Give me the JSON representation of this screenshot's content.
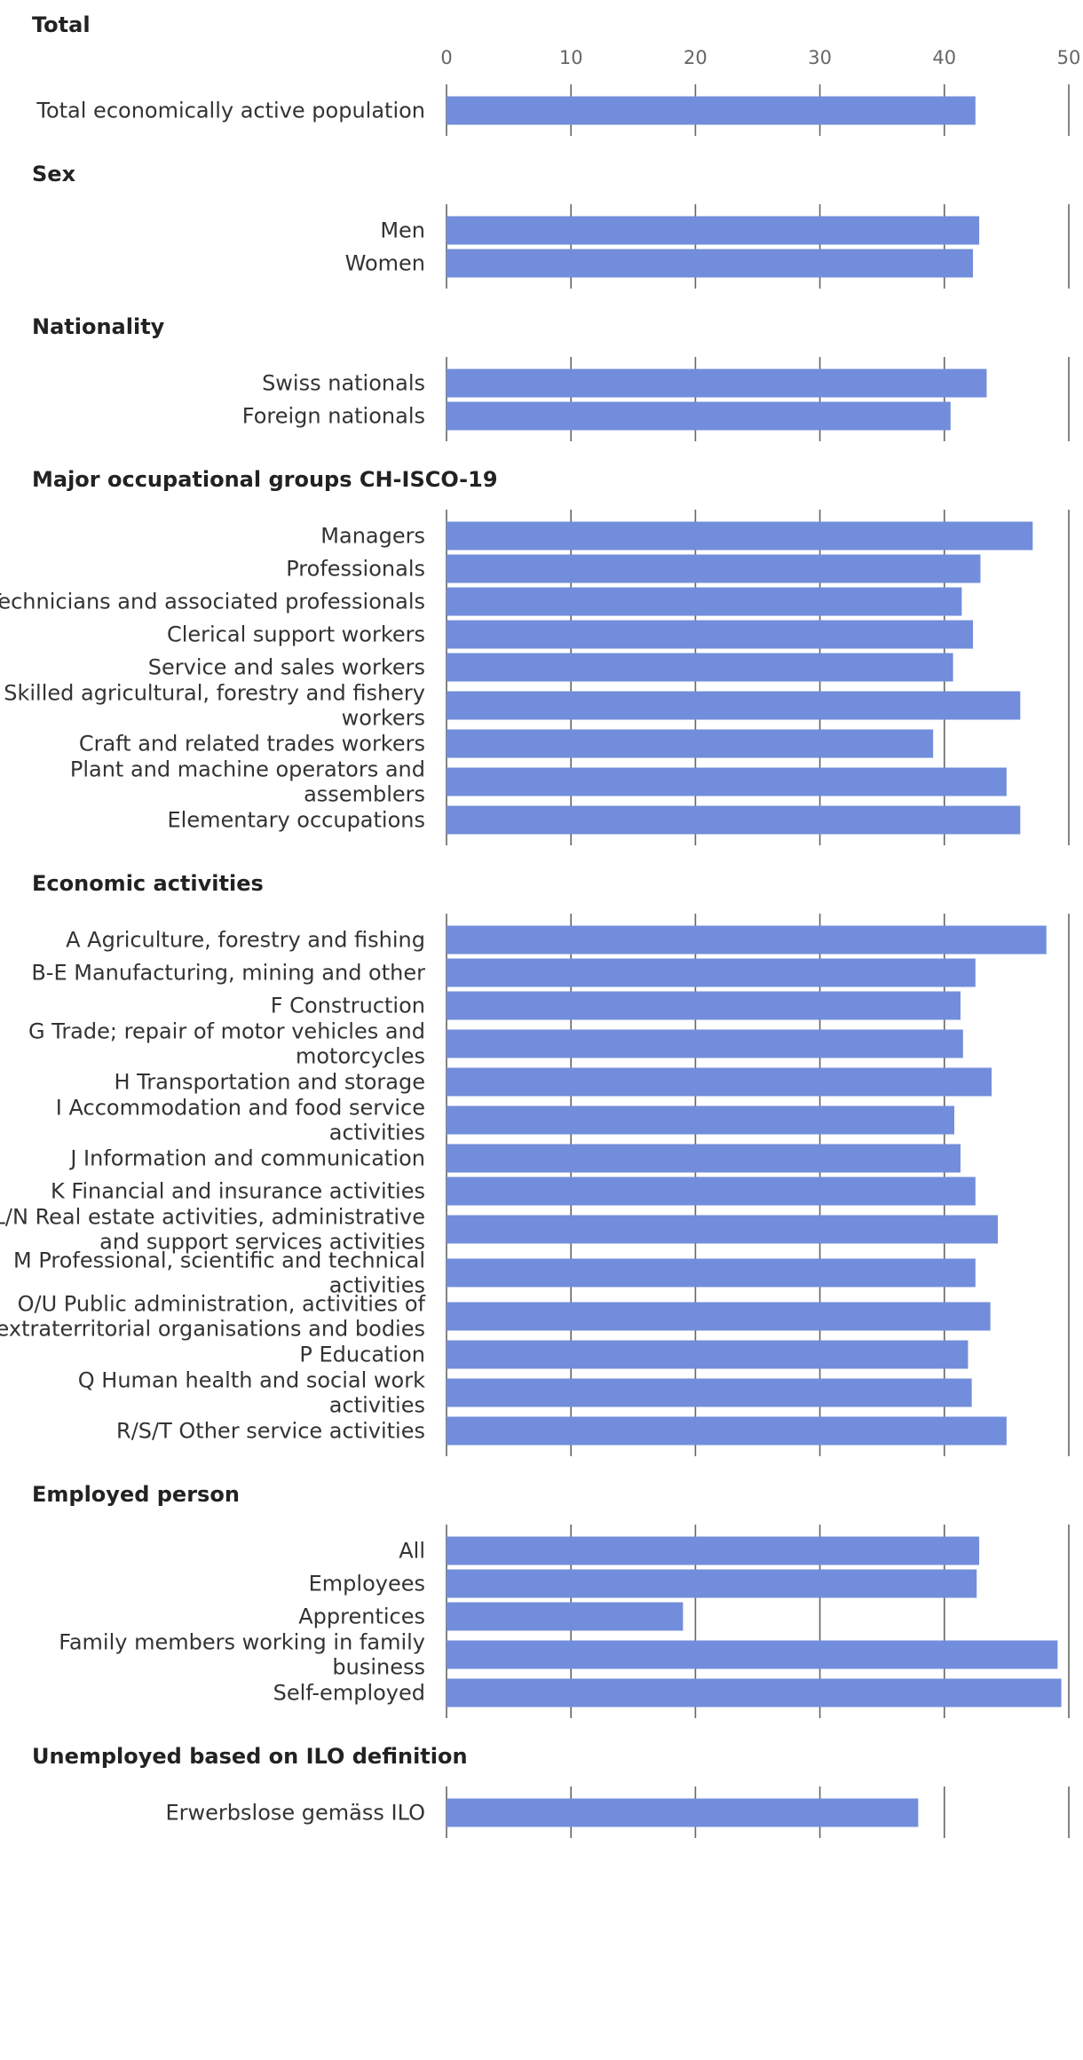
{
  "chart_data": {
    "type": "bar",
    "orientation": "horizontal",
    "xlim": [
      0,
      50
    ],
    "x_ticks": [
      0,
      10,
      20,
      30,
      40,
      50
    ],
    "grid": true,
    "bar_color": "#728ddb",
    "groups": [
      {
        "title": "Total",
        "categories": [
          [
            "Total economically active population"
          ]
        ],
        "values": [
          42.5
        ]
      },
      {
        "title": "Sex",
        "categories": [
          [
            "Men"
          ],
          [
            "Women"
          ]
        ],
        "values": [
          42.8,
          42.3
        ]
      },
      {
        "title": "Nationality",
        "categories": [
          [
            "Swiss nationals"
          ],
          [
            "Foreign nationals"
          ]
        ],
        "values": [
          43.4,
          40.5
        ]
      },
      {
        "title": "Major occupational groups CH-ISCO-19",
        "categories": [
          [
            "Managers"
          ],
          [
            "Professionals"
          ],
          [
            "Technicians and associated professionals"
          ],
          [
            "Clerical support workers"
          ],
          [
            "Service and sales workers"
          ],
          [
            "Skilled agricultural, forestry and fishery",
            "workers"
          ],
          [
            "Craft and related trades workers"
          ],
          [
            "Plant and machine operators and",
            "assemblers"
          ],
          [
            "Elementary occupations"
          ]
        ],
        "values": [
          47.1,
          42.9,
          41.4,
          42.3,
          40.7,
          46.1,
          39.1,
          45.0,
          46.1
        ]
      },
      {
        "title": "Economic activities",
        "categories": [
          [
            "A Agriculture, forestry and fishing"
          ],
          [
            "B-E Manufacturing, mining and other"
          ],
          [
            "F Construction"
          ],
          [
            "G Trade; repair of motor vehicles and",
            "motorcycles"
          ],
          [
            "H Transportation and storage"
          ],
          [
            "I Accommodation and food service",
            "activities"
          ],
          [
            "J Information and communication"
          ],
          [
            "K Financial and insurance activities"
          ],
          [
            "L/N Real estate activities, administrative",
            "and support services activities"
          ],
          [
            "M Professional, scientific and technical",
            "activities"
          ],
          [
            "O/U Public administration, activities of",
            "extraterritorial organisations and bodies"
          ],
          [
            "P Education"
          ],
          [
            "Q Human health and social work",
            "activities"
          ],
          [
            "R/S/T Other service activities"
          ]
        ],
        "values": [
          48.2,
          42.5,
          41.3,
          41.5,
          43.8,
          40.8,
          41.3,
          42.5,
          44.3,
          42.5,
          43.7,
          41.9,
          42.2,
          45.0
        ]
      },
      {
        "title": "Employed person",
        "categories": [
          [
            "All"
          ],
          [
            "Employees"
          ],
          [
            "Apprentices"
          ],
          [
            "Family members working in family",
            "business"
          ],
          [
            "Self-employed"
          ]
        ],
        "values": [
          42.8,
          42.6,
          19.0,
          49.1,
          49.4
        ]
      },
      {
        "title": "Unemployed based on ILO definition",
        "categories": [
          [
            "Erwerbslose gemäss ILO"
          ]
        ],
        "values": [
          37.9
        ]
      }
    ]
  }
}
